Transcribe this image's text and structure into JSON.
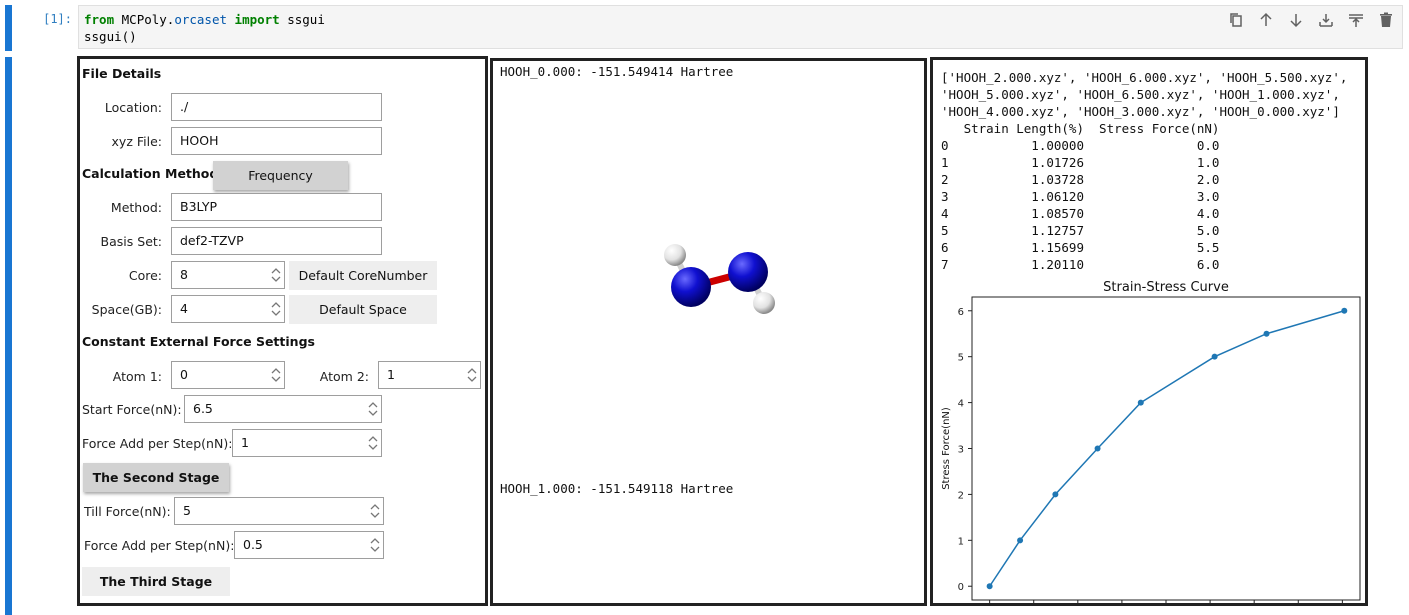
{
  "cell": {
    "prompt": "[1]:",
    "code_line1": {
      "kw_from": "from",
      "module_a": "MCPoly",
      "dot": ".",
      "module_b": "orcaset",
      "kw_import": "import",
      "name": "ssgui"
    },
    "code_line2": "ssgui()"
  },
  "toolbar": {
    "icons": [
      "copy-icon",
      "arrow-up-icon",
      "arrow-down-icon",
      "insert-below-icon",
      "insert-above-icon",
      "trash-icon"
    ]
  },
  "form": {
    "file_details": "File Details",
    "location_label": "Location:",
    "location_value": "./",
    "xyz_label": "xyz File:",
    "xyz_value": "HOOH",
    "calc_methods": "Calculation Methods",
    "frequency_button": "Frequency",
    "method_label": "Method:",
    "method_value": "B3LYP",
    "basis_label": "Basis Set:",
    "basis_value": "def2-TZVP",
    "core_label": "Core:",
    "core_value": "8",
    "default_core_button": "Default CoreNumber",
    "space_label": "Space(GB):",
    "space_value": "4",
    "default_space_button": "Default Space",
    "cef_settings": "Constant External Force Settings",
    "atom1_label": "Atom 1:",
    "atom1_value": "0",
    "atom2_label": "Atom 2:",
    "atom2_value": "1",
    "start_force_label": "Start Force(nN):",
    "start_force_value": "6.5",
    "force_step_label": "Force Add per Step(nN):",
    "force_step_value": "1",
    "second_stage_button": "The Second Stage",
    "till_force_label": "Till Force(nN):",
    "till_force_value": "5",
    "force_step2_label": "Force Add per Step(nN):",
    "force_step2_value": "0.5",
    "third_stage_button": "The Third Stage"
  },
  "viewer": {
    "energy_top": "HOOH_0.000: -151.549414 Hartree",
    "energy_bottom": "HOOH_1.000: -151.549118 Hartree",
    "atom_colors": {
      "oxygen": "#1010d0",
      "hydrogen": "#f0f0f0",
      "bond": "#cc0000"
    }
  },
  "output": {
    "file_list": [
      "['HOOH_2.000.xyz', 'HOOH_6.000.xyz', 'HOOH_5.500.xyz',",
      "'HOOH_5.000.xyz', 'HOOH_6.500.xyz', 'HOOH_1.000.xyz',",
      "'HOOH_4.000.xyz', 'HOOH_3.000.xyz', 'HOOH_0.000.xyz']"
    ],
    "table_header": "   Strain Length(%)  Stress Force(nN)",
    "table_rows": [
      "0           1.00000               0.0",
      "1           1.01726               1.0",
      "2           1.03728               2.0",
      "3           1.06120               3.0",
      "4           1.08570               4.0",
      "5           1.12757               5.0",
      "6           1.15699               5.5",
      "7           1.20110               6.0"
    ]
  },
  "chart_data": {
    "type": "line",
    "title": "Strain-Stress Curve",
    "xlabel": "",
    "ylabel": "Stress Force(nN)",
    "x": [
      1.0,
      1.01726,
      1.03728,
      1.0612,
      1.0857,
      1.12757,
      1.15699,
      1.2011
    ],
    "y": [
      0.0,
      1.0,
      2.0,
      3.0,
      4.0,
      5.0,
      5.5,
      6.0
    ],
    "xlim": [
      0.99,
      1.21
    ],
    "ylim": [
      -0.3,
      6.3
    ],
    "xticks": [
      "1.000",
      "1.025",
      "1.050",
      "1.075",
      "1.100",
      "1.125",
      "1.150",
      "1.175",
      "1.200"
    ],
    "yticks": [
      "0",
      "1",
      "2",
      "3",
      "4",
      "5",
      "6"
    ],
    "color": "#1f77b4",
    "grid": false
  }
}
